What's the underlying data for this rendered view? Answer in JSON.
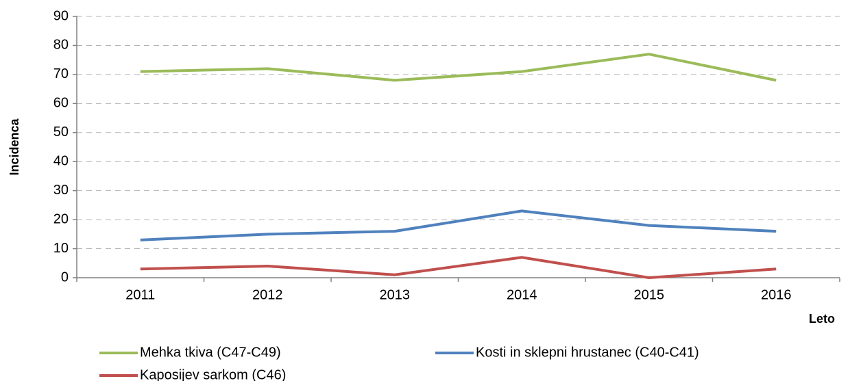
{
  "chart_data": {
    "type": "line",
    "x_label": "Leto",
    "y_label": "Incidenca",
    "categories": [
      "2011",
      "2012",
      "2013",
      "2014",
      "2015",
      "2016"
    ],
    "series": [
      {
        "name": "Mehka tkiva (C47-C49)",
        "color": "#9bbb59",
        "values": [
          71,
          72,
          68,
          71,
          77,
          68
        ]
      },
      {
        "name": "Kosti in sklepni hrustanec (C40-C41)",
        "color": "#4f81bd",
        "values": [
          13,
          15,
          16,
          23,
          18,
          16
        ]
      },
      {
        "name": "Kaposijev sarkom (C46)",
        "color": "#c0504d",
        "values": [
          3,
          4,
          1,
          7,
          0,
          3
        ]
      }
    ],
    "ylim": [
      0,
      90
    ],
    "yticks": [
      0,
      10,
      20,
      30,
      40,
      50,
      60,
      70,
      80,
      90
    ],
    "grid": true,
    "legend": "bottom"
  }
}
